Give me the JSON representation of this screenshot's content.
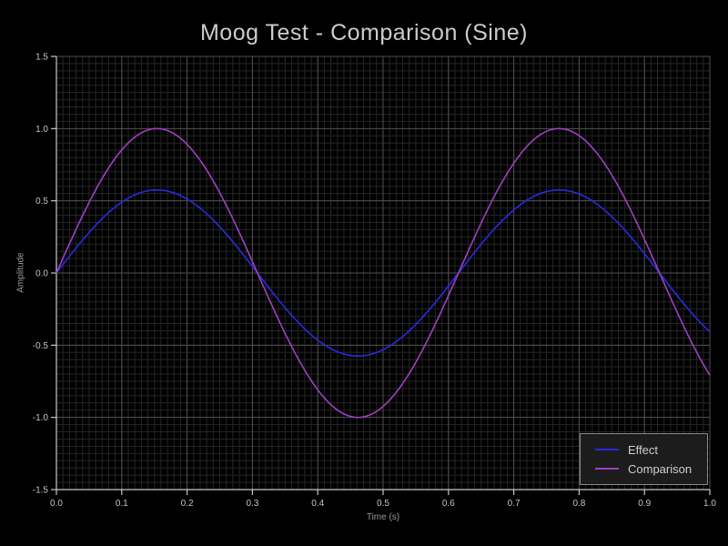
{
  "chart_data": {
    "type": "line",
    "title": "Moog Test - Comparison (Sine)",
    "xlabel": "Time (s)",
    "ylabel": "Amplitude",
    "xlim": [
      0.0,
      1.0
    ],
    "ylim": [
      -1.5,
      1.5
    ],
    "xticks": [
      0.0,
      0.1,
      0.2,
      0.3,
      0.4,
      0.5,
      0.6,
      0.7,
      0.8,
      0.9,
      1.0
    ],
    "xtick_labels": [
      "0.0",
      "0.1",
      "0.2",
      "0.3",
      "0.4",
      "0.5",
      "0.6",
      "0.7",
      "0.8",
      "0.9",
      "1.0"
    ],
    "yticks": [
      -1.5,
      -1.0,
      -0.5,
      0.0,
      0.5,
      1.0,
      1.5
    ],
    "ytick_labels": [
      "-1.5",
      "-1.0",
      "-0.5",
      "0.0",
      "0.5",
      "1.0",
      "1.5"
    ],
    "grid": {
      "major": true,
      "minor": true,
      "minor_x_step": 0.01,
      "minor_y_step": 0.05
    },
    "legend_position": "lower right",
    "colors": {
      "background": "#000000",
      "major_grid": "#4f4f4f",
      "minor_grid": "#262626",
      "spine": "#c9c9c9",
      "tick_label": "#c4c4c4",
      "title_text": "#cccccc",
      "axis_label_text": "#9a9a9a",
      "legend_border": "#8a8a8a",
      "legend_background": "#1c1c1c"
    },
    "x": [
      0.0,
      0.05,
      0.1,
      0.15,
      0.2,
      0.25,
      0.3,
      0.35,
      0.4,
      0.45,
      0.5,
      0.55,
      0.6,
      0.65,
      0.7,
      0.75,
      0.8,
      0.85,
      0.9,
      0.95,
      1.0
    ],
    "series": [
      {
        "name": "Effect",
        "color": "#2a2ae0",
        "model": {
          "form": "A*sin(2*pi*f*t)",
          "amplitude": 0.575,
          "frequency_hz": 1.625
        },
        "values": [
          0.0,
          0.281,
          0.49,
          0.574,
          0.512,
          0.32,
          0.045,
          -0.241,
          -0.465,
          -0.571,
          -0.531,
          -0.356,
          -0.09,
          0.199,
          0.437,
          0.564,
          0.547,
          0.39,
          0.134,
          -0.156,
          -0.407
        ]
      },
      {
        "name": "Comparison",
        "color": "#9f3fc2",
        "model": {
          "form": "A*sin(2*pi*f*t)",
          "amplitude": 1.0,
          "frequency_hz": 1.625
        },
        "values": [
          0.0,
          0.489,
          0.853,
          0.999,
          0.891,
          0.556,
          0.079,
          -0.419,
          -0.809,
          -0.993,
          -0.924,
          -0.619,
          -0.156,
          0.346,
          0.76,
          0.981,
          0.951,
          0.679,
          0.233,
          -0.271,
          -0.707
        ]
      }
    ]
  }
}
